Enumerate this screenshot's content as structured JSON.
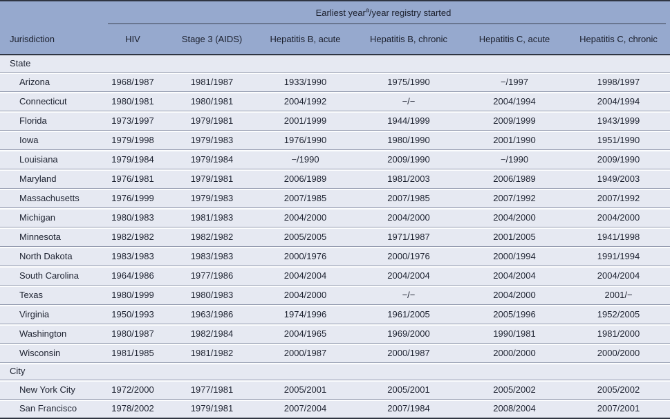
{
  "colors": {
    "header_background": "#96a9ce",
    "row_background": "#e6e9f2",
    "dark_rule": "#2f3542",
    "row_separator": "#959cb0",
    "text": "#1d2230"
  },
  "table": {
    "spanner_prefix": "Earliest year",
    "spanner_sup": "a",
    "spanner_suffix": "/year registry started",
    "columns": [
      "Jurisdiction",
      "HIV",
      "Stage 3 (AIDS)",
      "Hepatitis B, acute",
      "Hepatitis B, chronic",
      "Hepatitis C, acute",
      "Hepatitis C, chronic"
    ],
    "sections": [
      {
        "label": "State",
        "rows": [
          [
            "Arizona",
            "1968/1987",
            "1981/1987",
            "1933/1990",
            "1975/1990",
            "−/1997",
            "1998/1997"
          ],
          [
            "Connecticut",
            "1980/1981",
            "1980/1981",
            "2004/1992",
            "−/−",
            "2004/1994",
            "2004/1994"
          ],
          [
            "Florida",
            "1973/1997",
            "1979/1981",
            "2001/1999",
            "1944/1999",
            "2009/1999",
            "1943/1999"
          ],
          [
            "Iowa",
            "1979/1998",
            "1979/1983",
            "1976/1990",
            "1980/1990",
            "2001/1990",
            "1951/1990"
          ],
          [
            "Louisiana",
            "1979/1984",
            "1979/1984",
            "−/1990",
            "2009/1990",
            "−/1990",
            "2009/1990"
          ],
          [
            "Maryland",
            "1976/1981",
            "1979/1981",
            "2006/1989",
            "1981/2003",
            "2006/1989",
            "1949/2003"
          ],
          [
            "Massachusetts",
            "1976/1999",
            "1979/1983",
            "2007/1985",
            "2007/1985",
            "2007/1992",
            "2007/1992"
          ],
          [
            "Michigan",
            "1980/1983",
            "1981/1983",
            "2004/2000",
            "2004/2000",
            "2004/2000",
            "2004/2000"
          ],
          [
            "Minnesota",
            "1982/1982",
            "1982/1982",
            "2005/2005",
            "1971/1987",
            "2001/2005",
            "1941/1998"
          ],
          [
            "North Dakota",
            "1983/1983",
            "1983/1983",
            "2000/1976",
            "2000/1976",
            "2000/1994",
            "1991/1994"
          ],
          [
            "South Carolina",
            "1964/1986",
            "1977/1986",
            "2004/2004",
            "2004/2004",
            "2004/2004",
            "2004/2004"
          ],
          [
            "Texas",
            "1980/1999",
            "1980/1983",
            "2004/2000",
            "−/−",
            "2004/2000",
            "2001/−"
          ],
          [
            "Virginia",
            "1950/1993",
            "1963/1986",
            "1974/1996",
            "1961/2005",
            "2005/1996",
            "1952/2005"
          ],
          [
            "Washington",
            "1980/1987",
            "1982/1984",
            "2004/1965",
            "1969/2000",
            "1990/1981",
            "1981/2000"
          ],
          [
            "Wisconsin",
            "1981/1985",
            "1981/1982",
            "2000/1987",
            "2000/1987",
            "2000/2000",
            "2000/2000"
          ]
        ]
      },
      {
        "label": "City",
        "rows": [
          [
            "New York City",
            "1972/2000",
            "1977/1981",
            "2005/2001",
            "2005/2001",
            "2005/2002",
            "2005/2002"
          ],
          [
            "San Francisco",
            "1978/2002",
            "1979/1981",
            "2007/2004",
            "2007/1984",
            "2008/2004",
            "2007/2001"
          ]
        ]
      }
    ]
  }
}
